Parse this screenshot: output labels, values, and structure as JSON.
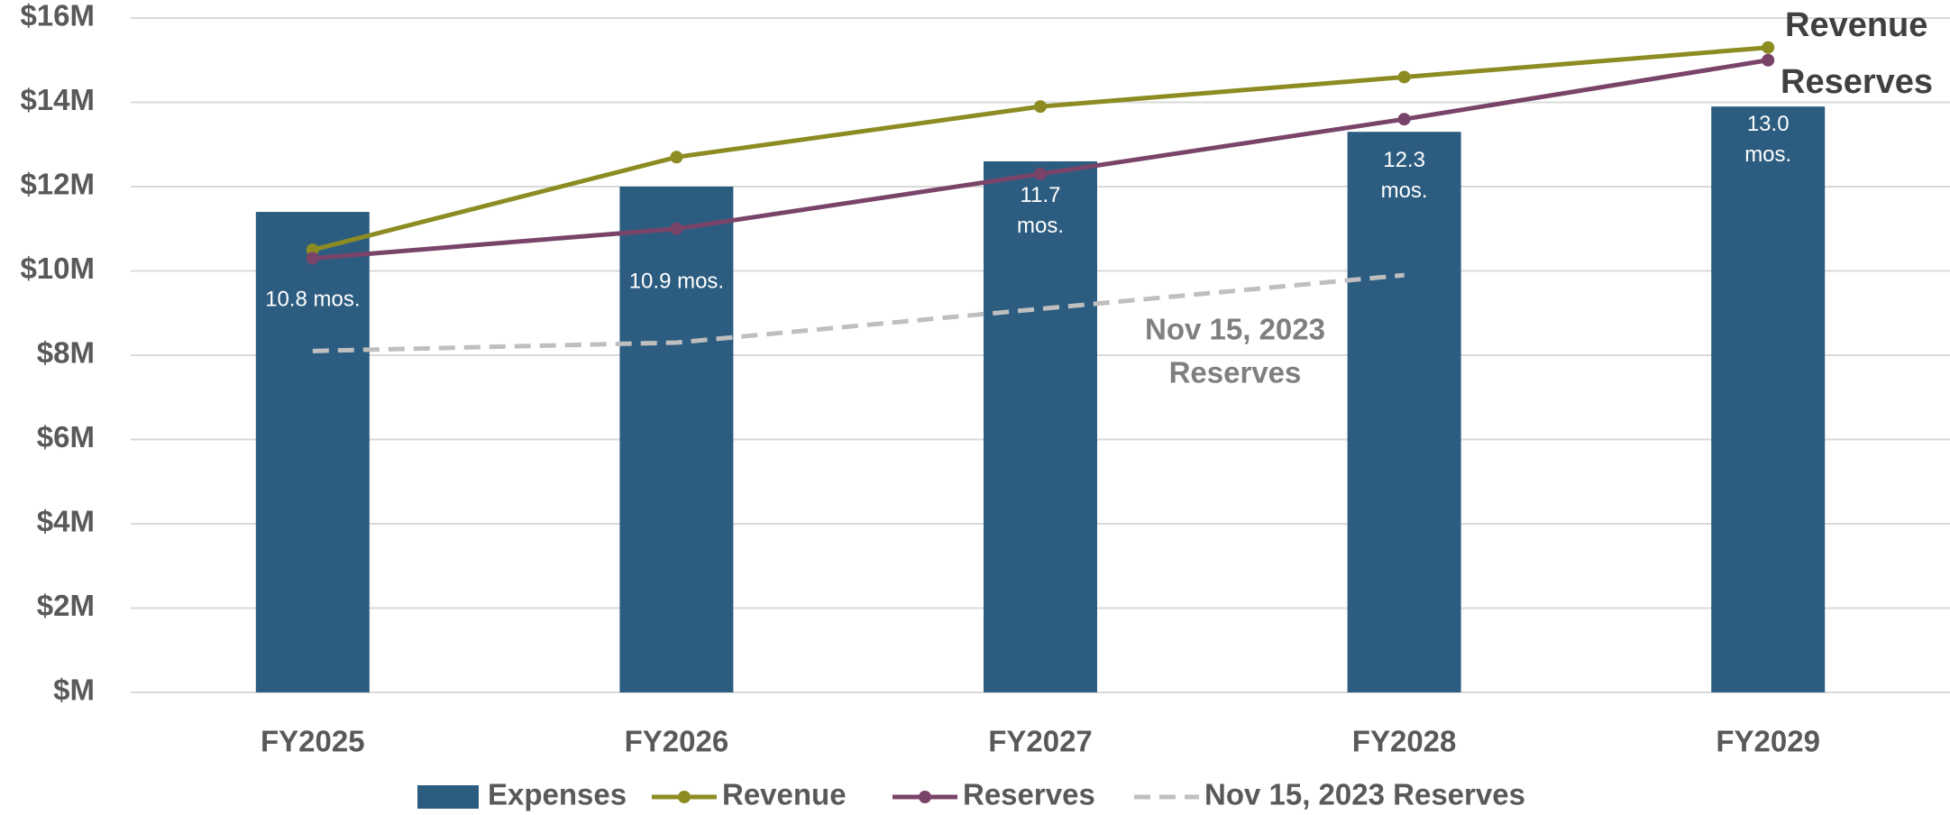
{
  "chart_data": {
    "type": "bar_line",
    "categories": [
      "FY2025",
      "FY2026",
      "FY2027",
      "FY2028",
      "FY2029"
    ],
    "series": [
      {
        "name": "Expenses",
        "type": "bar",
        "color": "#2c5d80",
        "values": [
          11.4,
          12.0,
          12.6,
          13.3,
          13.9
        ],
        "value_labels": [
          "10.8 mos.",
          "10.9 mos.",
          "11.7 mos.",
          "12.3 mos.",
          "13.0 mos."
        ]
      },
      {
        "name": "Revenue",
        "type": "line",
        "color": "#8c8c23",
        "values": [
          10.5,
          12.7,
          13.9,
          14.6,
          15.3
        ]
      },
      {
        "name": "Reserves",
        "type": "line",
        "color": "#7a4469",
        "values": [
          10.3,
          11.0,
          12.3,
          13.6,
          15.0
        ]
      },
      {
        "name": "Nov 15, 2023 Reserves",
        "type": "dashed",
        "color": "#bfbfbf",
        "values": [
          8.1,
          8.3,
          9.1,
          9.9,
          null
        ]
      }
    ],
    "annotations": [
      {
        "lines": [
          "Revenue"
        ]
      },
      {
        "lines": [
          "Reserves"
        ]
      },
      {
        "lines": [
          "Nov 15, 2023",
          "Reserves"
        ]
      }
    ],
    "ylim": [
      0,
      16
    ],
    "yticks": [
      {
        "value": 0,
        "label": "$M"
      },
      {
        "value": 2,
        "label": "$2M"
      },
      {
        "value": 4,
        "label": "$4M"
      },
      {
        "value": 6,
        "label": "$6M"
      },
      {
        "value": 8,
        "label": "$8M"
      },
      {
        "value": 10,
        "label": "$10M"
      },
      {
        "value": 12,
        "label": "$12M"
      },
      {
        "value": 14,
        "label": "$14M"
      },
      {
        "value": 16,
        "label": "$16M"
      }
    ],
    "grid": true,
    "legend": "bottom"
  }
}
